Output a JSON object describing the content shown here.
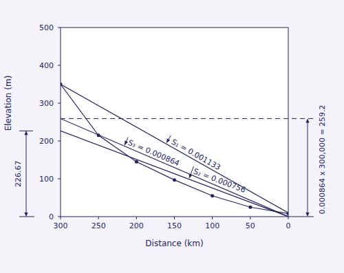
{
  "chart_data": {
    "type": "line",
    "x_label": "Distance (km)",
    "y_label": "Elevation (m)",
    "color": "#23235f",
    "x": [
      300,
      250,
      200,
      150,
      100,
      50,
      0
    ],
    "series": [
      {
        "values": [
          350,
          215,
          145,
          97,
          55,
          25,
          8
        ],
        "marker": "circle"
      }
    ],
    "xlim": [
      300,
      0
    ],
    "xticks": [
      300,
      250,
      200,
      150,
      100,
      50,
      0
    ],
    "ylim": [
      0,
      500
    ],
    "yticks": [
      0,
      100,
      200,
      300,
      400,
      500
    ],
    "slope_lines": [
      {
        "label": "S₁ = 0.001133",
        "x": [
          300,
          0
        ],
        "values": [
          350,
          10
        ]
      },
      {
        "label": "S₃ = 0.000864",
        "x": [
          300,
          0
        ],
        "values": [
          259.2,
          0
        ]
      },
      {
        "label": "S₂ = 0.000756",
        "x": [
          300,
          0
        ],
        "values": [
          226.67,
          0
        ]
      }
    ],
    "reference_line": {
      "value": 259.2,
      "label": "0.000864 x 300,000 = 259.2",
      "line_style": "dashed"
    },
    "dimension": {
      "value": 226.67,
      "label": "226.67"
    }
  }
}
